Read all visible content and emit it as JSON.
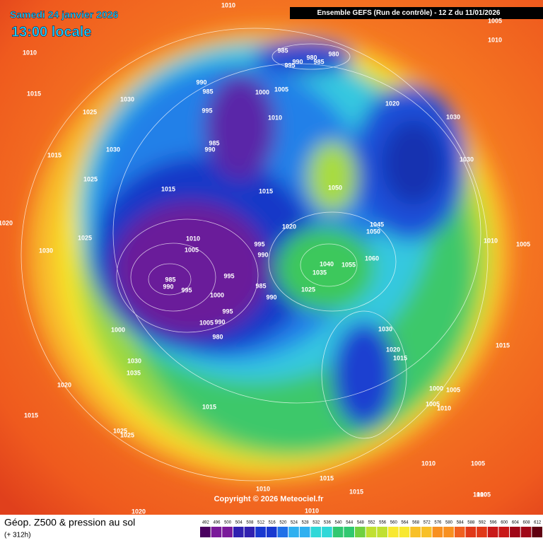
{
  "header": {
    "date": "Samedi 24 janvier 2026",
    "time": "13:00 locale",
    "model": "Ensemble GEFS  (Run de contrôle)  -  12 Z du 11/01/2026"
  },
  "copyright": "Copyright © 2026 Meteociel.fr",
  "footer": {
    "title": "Géop. Z500 & pression au sol",
    "lead": "(+ 312h)"
  },
  "isobars": [
    1010,
    1005,
    1010,
    1010,
    985,
    980,
    980,
    985,
    990,
    995,
    1015,
    1030,
    990,
    985,
    1000,
    1005,
    1020,
    995,
    1025,
    1010,
    1030,
    985,
    990,
    1030,
    1015,
    1030,
    1025,
    1015,
    1015,
    1050,
    1045,
    1050,
    1020,
    1020,
    1025,
    1010,
    1005,
    995,
    990,
    1010,
    1005,
    1030,
    1060,
    1040,
    1055,
    1035,
    985,
    990,
    995,
    995,
    985,
    990,
    1000,
    1025,
    995,
    1005,
    990,
    980,
    1000,
    1030,
    1020,
    1015,
    1015,
    1030,
    1035,
    1020,
    1000,
    1005,
    1005,
    1010,
    1015,
    1015,
    1025,
    1025,
    1010,
    1005,
    1015,
    1015,
    1010,
    1010,
    1005,
    1020,
    1010
  ],
  "legend": {
    "levels": [
      492,
      496,
      500,
      504,
      508,
      512,
      516,
      520,
      524,
      528,
      532,
      536,
      540,
      544,
      548,
      552,
      556,
      560,
      564,
      568,
      572,
      576,
      580,
      584,
      588,
      592,
      596,
      600,
      604,
      608,
      612
    ]
  }
}
